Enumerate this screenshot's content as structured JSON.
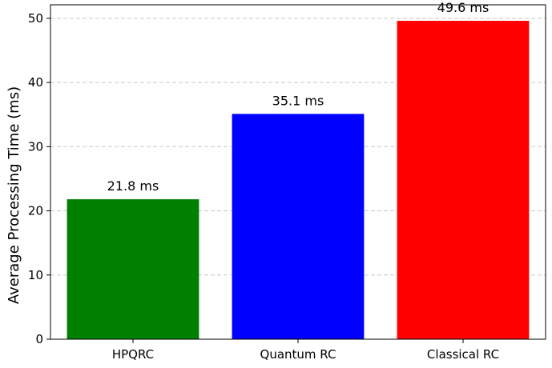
{
  "chart_data": {
    "type": "bar",
    "title": "",
    "xlabel": "",
    "ylabel": "Average Processing Time (ms)",
    "categories": [
      "HPQRC",
      "Quantum RC",
      "Classical RC"
    ],
    "values": [
      21.8,
      35.1,
      49.6
    ],
    "bar_labels": [
      "21.8 ms",
      "35.1 ms",
      "49.6 ms"
    ],
    "colors": [
      "#008000",
      "#0000ff",
      "#ff0000"
    ],
    "ylim": [
      0,
      52.1
    ],
    "yticks": [
      0,
      10,
      20,
      30,
      40,
      50
    ],
    "grid": "y-dashed"
  }
}
